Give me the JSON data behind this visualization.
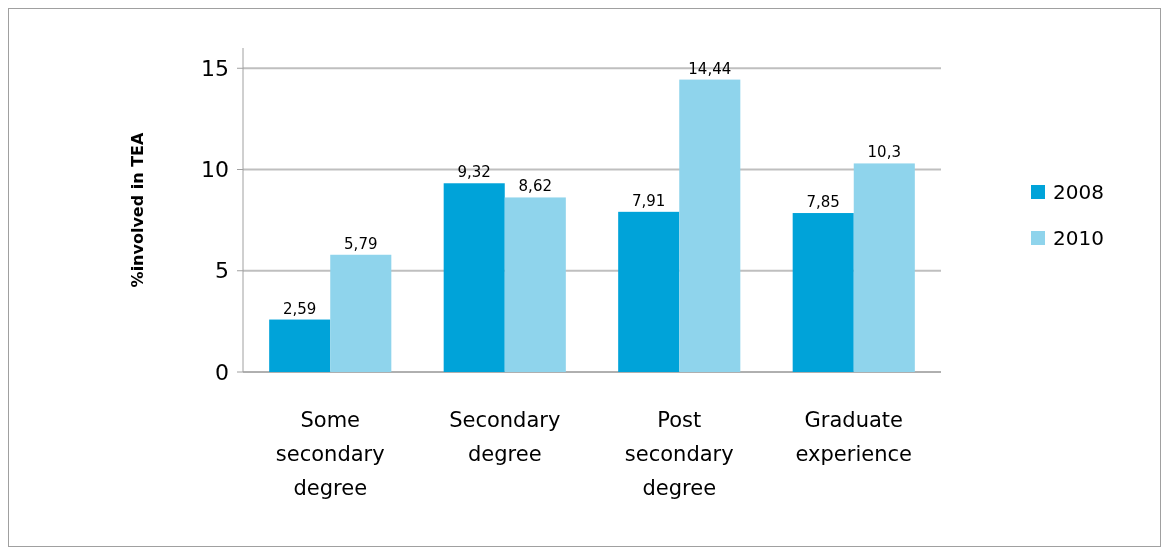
{
  "chart_data": {
    "type": "bar",
    "ylabel": "%involved in TEA",
    "categories": [
      "Some secondary degree",
      "Secondary degree",
      "Post secondary degree",
      "Graduate experience"
    ],
    "series": [
      {
        "name": "2008",
        "color": "#00a3d9",
        "values": [
          2.59,
          9.32,
          7.91,
          7.85
        ],
        "value_labels": [
          "2,59",
          "9,32",
          "7,91",
          "7,85"
        ]
      },
      {
        "name": "2010",
        "color": "#8fd4ec",
        "values": [
          5.79,
          8.62,
          14.44,
          10.3
        ],
        "value_labels": [
          "5,79",
          "8,62",
          "14,44",
          "10,3"
        ]
      }
    ],
    "ylim": [
      0,
      16
    ],
    "yticks": [
      0,
      5,
      10,
      15
    ],
    "grid": "y",
    "legend": "right"
  }
}
